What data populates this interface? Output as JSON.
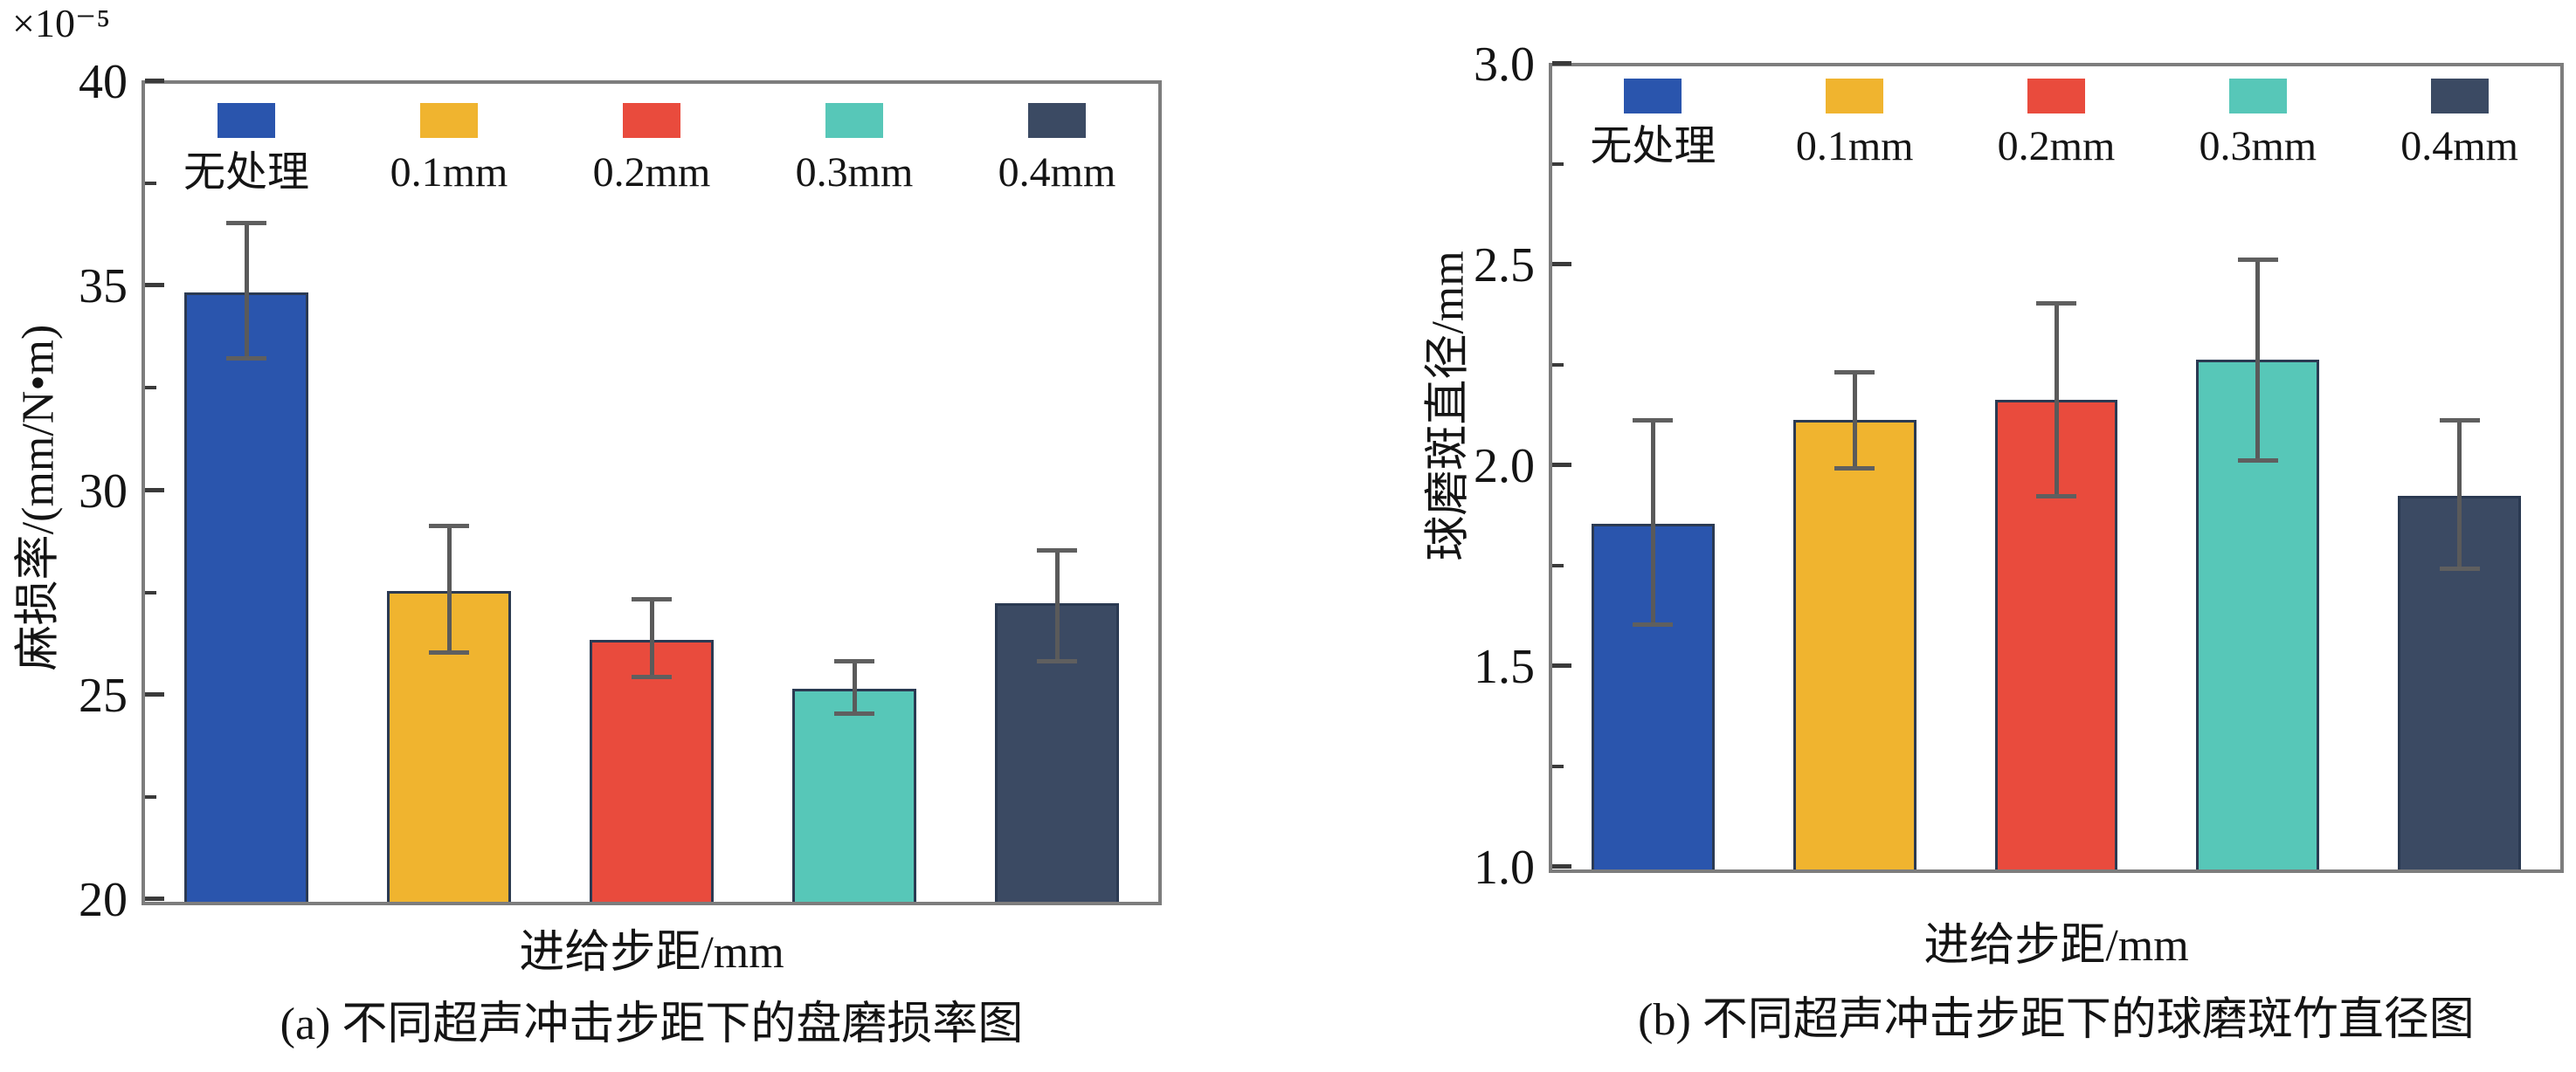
{
  "figure_title": "",
  "legend": {
    "labels": [
      "无处理",
      "0.1mm",
      "0.2mm",
      "0.3mm",
      "0.4mm"
    ],
    "colors": [
      "#2a55ad",
      "#f0b42f",
      "#e94b3d",
      "#57c7b8",
      "#3b4a63"
    ]
  },
  "colors": {
    "frame": "#7d7d7d",
    "tick": "#3a3a3a",
    "error_bar": "#5f5f5f",
    "bar_border": "#2b3a52",
    "text": "#141414",
    "background": "#ffffff"
  },
  "chart_data": [
    {
      "type": "bar",
      "title": "(a) 不同超声冲击步距下的盘磨损率图",
      "categories": [
        "无处理",
        "0.1mm",
        "0.2mm",
        "0.3mm",
        "0.4mm"
      ],
      "values": [
        34.9,
        27.6,
        26.4,
        25.2,
        27.3
      ],
      "error_low": [
        33.3,
        26.1,
        25.5,
        24.6,
        25.9
      ],
      "error_high": [
        36.6,
        29.2,
        27.4,
        25.9,
        28.6
      ],
      "bar_colors": [
        "#2a55ad",
        "#f0b42f",
        "#e94b3d",
        "#57c7b8",
        "#3b4a63"
      ],
      "xlabel": "进给步距/mm",
      "ylabel": "麻损率/(mm/N•m)",
      "y_exponent": "×10⁻⁵",
      "ylim": [
        20,
        40
      ],
      "ytick_values": [
        40,
        35,
        30,
        25,
        20
      ],
      "ytick_labels": [
        "40",
        "35",
        "30",
        "25",
        "20"
      ],
      "ytick_minor": [
        37.5,
        32.5,
        27.5,
        22.5
      ],
      "grid": false,
      "legend_position": "top-inside"
    },
    {
      "type": "bar",
      "title": "(b) 不同超声冲击步距下的球磨斑竹直径图",
      "categories": [
        "无处理",
        "0.1mm",
        "0.2mm",
        "0.3mm",
        "0.4mm"
      ],
      "values": [
        1.86,
        2.12,
        2.17,
        2.27,
        1.93
      ],
      "error_low": [
        1.61,
        2.0,
        1.93,
        2.02,
        1.75
      ],
      "error_high": [
        2.12,
        2.24,
        2.41,
        2.52,
        2.12
      ],
      "bar_colors": [
        "#2a55ad",
        "#f0b42f",
        "#e94b3d",
        "#57c7b8",
        "#3b4a63"
      ],
      "xlabel": "进给步距/mm",
      "ylabel": "球磨斑直径/mm",
      "y_exponent": "",
      "ylim": [
        1.0,
        3.0
      ],
      "ytick_values": [
        3.0,
        2.5,
        2.0,
        1.5,
        1.0
      ],
      "ytick_labels": [
        "3.0",
        "2.5",
        "2.0",
        "1.5",
        "1.0"
      ],
      "ytick_minor": [
        2.75,
        2.25,
        1.75,
        1.25
      ],
      "grid": false,
      "legend_position": "top-inside"
    }
  ]
}
